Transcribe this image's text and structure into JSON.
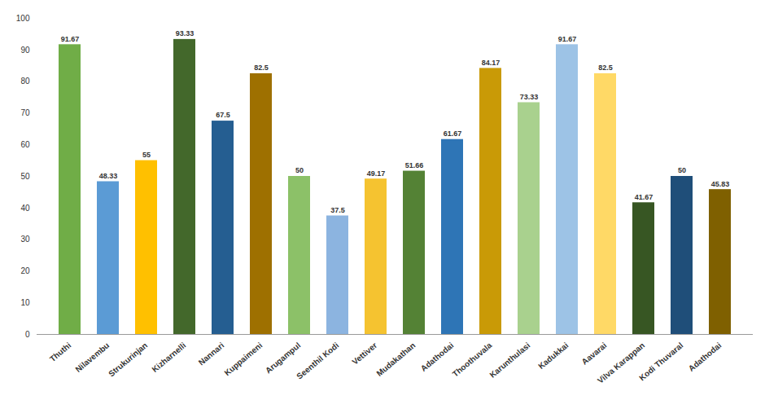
{
  "chart_data": {
    "type": "bar",
    "categories": [
      "Thuthi",
      "Nilavembu",
      "Strukurinjan",
      "Kizharnelli",
      "Nannari",
      "Kuppaimeni",
      "Arugampul",
      "Seenthil Kodi",
      "Vettiver",
      "Mudakathan",
      "Adathodai",
      "Thoothuvala",
      "Karunthulasi",
      "Kadukkai",
      "Aavarai",
      "Vilva Karappan",
      "Kodi Thuvaral",
      "Adathodai"
    ],
    "values": [
      91.67,
      48.33,
      55,
      93.33,
      67.5,
      82.5,
      50,
      37.5,
      49.17,
      51.66,
      61.67,
      84.17,
      73.33,
      91.67,
      82.5,
      41.67,
      50,
      45.83
    ],
    "colors": [
      "#70ad47",
      "#5b9bd5",
      "#ffc000",
      "#43682b",
      "#255e91",
      "#9e7000",
      "#8cc168",
      "#8cb4e0",
      "#f5c330",
      "#548235",
      "#2e75b6",
      "#c99a06",
      "#a9d18e",
      "#9dc3e6",
      "#ffd966",
      "#375623",
      "#1f4e79",
      "#7f6000"
    ],
    "ylim": [
      0,
      100
    ],
    "yticks": [
      0,
      10,
      20,
      30,
      40,
      50,
      60,
      70,
      80,
      90,
      100
    ],
    "grid": false,
    "data_labels": true
  }
}
